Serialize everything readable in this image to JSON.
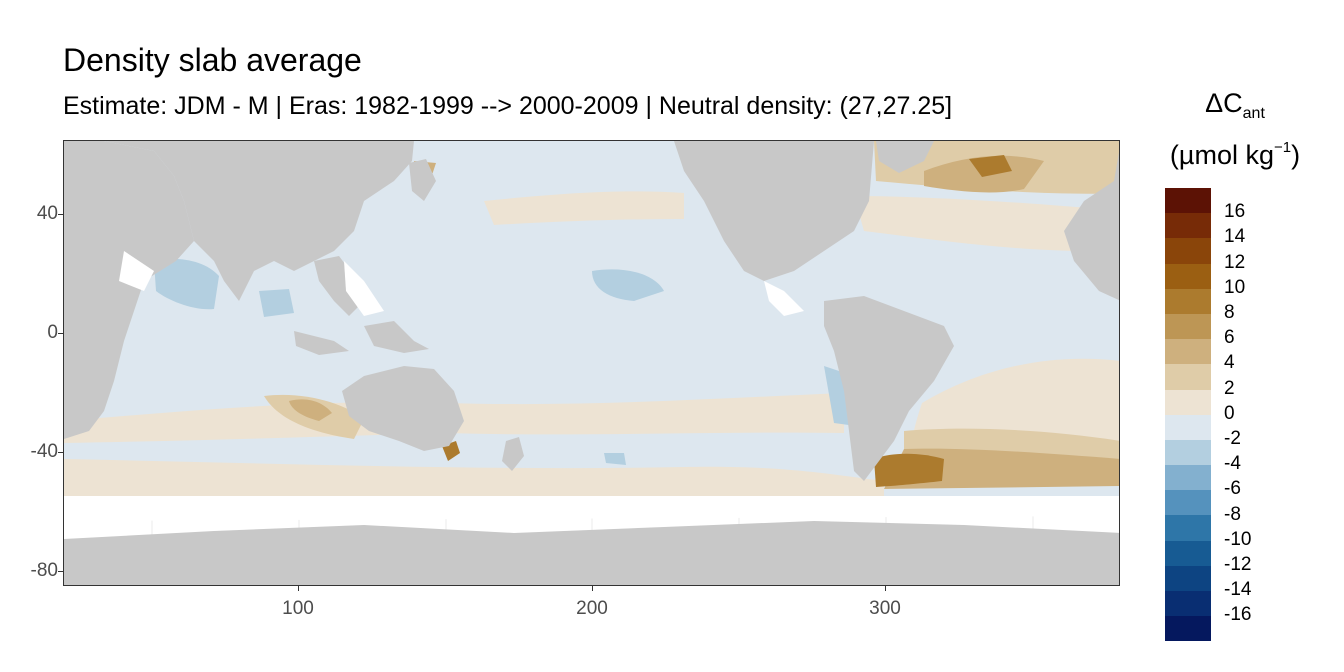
{
  "title": "Density slab average",
  "subtitle": "Estimate: JDM - M | Eras: 1982-1999 --> 2000-2009 | Neutral density: (27,27.25]",
  "map": {
    "projection": "equirectangular",
    "x_range_degrees_east": [
      20,
      380
    ],
    "y_range_degrees_north": [
      -85,
      65
    ],
    "x_ticks": [
      "100",
      "200",
      "300"
    ],
    "y_ticks": [
      "40",
      "0",
      "-40",
      "-80"
    ],
    "colors": {
      "land": "#c8c8c8",
      "grid": "#ebebeb",
      "no_data": "#ffffff"
    }
  },
  "legend": {
    "title_symbol": "ΔC",
    "title_subscript": "ant",
    "unit_open": "(µmol kg",
    "unit_exponent": "−1",
    "unit_close": ")",
    "labels": [
      "16",
      "14",
      "12",
      "10",
      "8",
      "6",
      "4",
      "2",
      "0",
      "-2",
      "-4",
      "-6",
      "-8",
      "-10",
      "-12",
      "-14",
      "-16"
    ],
    "colors": [
      "#5c1205",
      "#772b07",
      "#8a450a",
      "#9b5f12",
      "#ac7b2e",
      "#bd9655",
      "#ceb07e",
      "#dfcca8",
      "#ede3d3",
      "#dde7ef",
      "#b3cfe0",
      "#83b0cf",
      "#5592bd",
      "#2e76a8",
      "#175b93",
      "#0d4482",
      "#092e72",
      "#05185e"
    ]
  }
}
